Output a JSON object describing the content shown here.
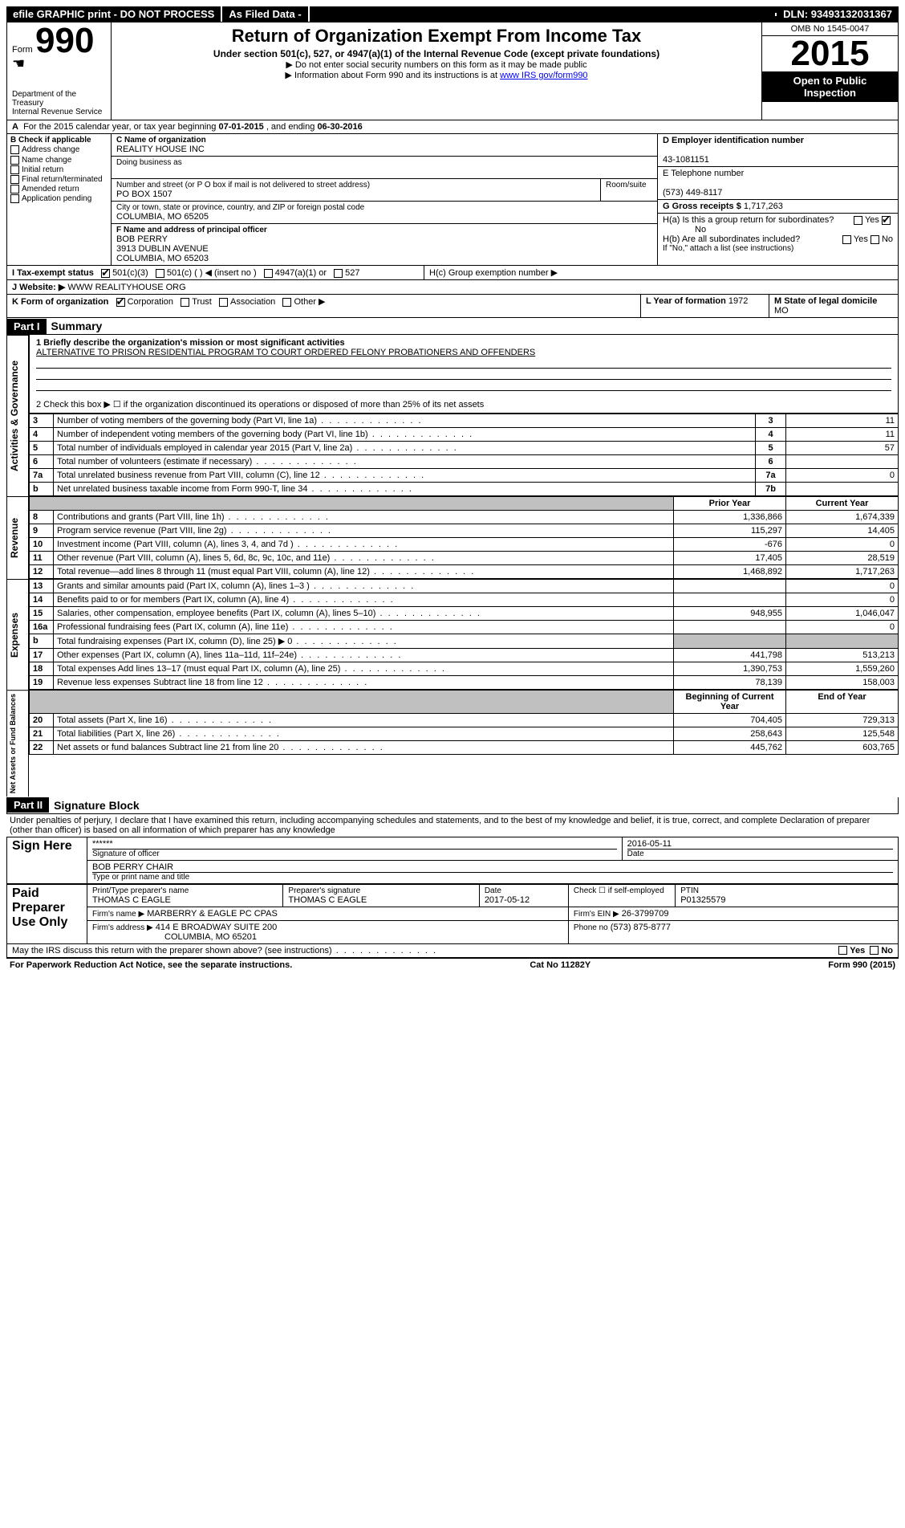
{
  "topbar": {
    "efile": "efile GRAPHIC print - DO NOT PROCESS",
    "asfiled": "As Filed Data -",
    "dln_label": "DLN:",
    "dln": "93493132031367"
  },
  "header": {
    "form_word": "Form",
    "form_num": "990",
    "title": "Return of Organization Exempt From Income Tax",
    "sub": "Under section 501(c), 527, or 4947(a)(1) of the Internal Revenue Code (except private foundations)",
    "note1": "Do not enter social security numbers on this form as it may be made public",
    "note2": "Information about Form 990 and its instructions is at",
    "note2_link": "www IRS gov/form990",
    "dept1": "Department of the Treasury",
    "dept2": "Internal Revenue Service",
    "omb": "OMB No 1545-0047",
    "year": "2015",
    "inspect1": "Open to Public",
    "inspect2": "Inspection"
  },
  "lineA": {
    "label": "For the 2015 calendar year, or tax year beginning",
    "begin": "07-01-2015",
    "mid": ", and ending",
    "end": "06-30-2016"
  },
  "boxB": {
    "label": "B  Check if applicable",
    "items": [
      "Address change",
      "Name change",
      "Initial return",
      "Final return/terminated",
      "Amended return",
      "Application pending"
    ]
  },
  "boxC": {
    "label": "C Name of organization",
    "name": "REALITY HOUSE INC",
    "dba_label": "Doing business as",
    "street_label": "Number and street (or P O  box if mail is not delivered to street address)",
    "room_label": "Room/suite",
    "street": "PO BOX 1507",
    "city_label": "City or town, state or province, country, and ZIP or foreign postal code",
    "city": "COLUMBIA, MO  65205"
  },
  "boxD": {
    "label": "D Employer identification number",
    "value": "43-1081151"
  },
  "boxE": {
    "label": "E Telephone number",
    "value": "(573) 449-8117"
  },
  "boxG": {
    "label": "G Gross receipts $",
    "value": "1,717,263"
  },
  "boxF": {
    "label": "F  Name and address of principal officer",
    "name": "BOB PERRY",
    "street": "3913 DUBLIN AVENUE",
    "city": "COLUMBIA, MO  65203"
  },
  "boxH": {
    "a": "H(a)  Is this a group return for subordinates?",
    "a_ans": "No",
    "b": "H(b)  Are all subordinates included?",
    "b_note": "If \"No,\" attach a list  (see instructions)",
    "c": "H(c)  Group exemption number ▶"
  },
  "lineI": {
    "label": "I   Tax-exempt status",
    "opts": [
      "501(c)(3)",
      "501(c) (  ) ◀ (insert no )",
      "4947(a)(1) or",
      "527"
    ]
  },
  "lineJ": {
    "label": "J   Website: ▶",
    "value": "WWW REALITYHOUSE ORG"
  },
  "lineK": {
    "label": "K Form of organization",
    "opts": [
      "Corporation",
      "Trust",
      "Association",
      "Other ▶"
    ]
  },
  "lineL": {
    "label": "L Year of formation",
    "value": "1972"
  },
  "lineM": {
    "label": "M State of legal domicile",
    "value": "MO"
  },
  "partI": {
    "hdr": "Part I",
    "title": "Summary",
    "q1_label": "1 Briefly describe the organization's mission or most significant activities",
    "q1_value": "ALTERNATIVE TO PRISON RESIDENTIAL PROGRAM TO COURT ORDERED FELONY PROBATIONERS AND OFFENDERS",
    "q2": "2  Check this box ▶ ☐ if the organization discontinued its operations or disposed of more than 25% of its net assets"
  },
  "side_labels": {
    "gov": "Activities & Governance",
    "rev": "Revenue",
    "exp": "Expenses",
    "net": "Net Assets or Fund Balances"
  },
  "gov_rows": [
    {
      "n": "3",
      "label": "Number of voting members of the governing body (Part VI, line 1a)",
      "box": "3",
      "val": "11"
    },
    {
      "n": "4",
      "label": "Number of independent voting members of the governing body (Part VI, line 1b)",
      "box": "4",
      "val": "11"
    },
    {
      "n": "5",
      "label": "Total number of individuals employed in calendar year 2015 (Part V, line 2a)",
      "box": "5",
      "val": "57"
    },
    {
      "n": "6",
      "label": "Total number of volunteers (estimate if necessary)",
      "box": "6",
      "val": ""
    },
    {
      "n": "7a",
      "label": "Total unrelated business revenue from Part VIII, column (C), line 12",
      "box": "7a",
      "val": "0"
    },
    {
      "n": "b",
      "label": "Net unrelated business taxable income from Form 990-T, line 34",
      "box": "7b",
      "val": ""
    }
  ],
  "col_hdrs": {
    "prior": "Prior Year",
    "current": "Current Year"
  },
  "rev_rows": [
    {
      "n": "8",
      "label": "Contributions and grants (Part VIII, line 1h)",
      "p": "1,336,866",
      "c": "1,674,339"
    },
    {
      "n": "9",
      "label": "Program service revenue (Part VIII, line 2g)",
      "p": "115,297",
      "c": "14,405"
    },
    {
      "n": "10",
      "label": "Investment income (Part VIII, column (A), lines 3, 4, and 7d )",
      "p": "-676",
      "c": "0"
    },
    {
      "n": "11",
      "label": "Other revenue (Part VIII, column (A), lines 5, 6d, 8c, 9c, 10c, and 11e)",
      "p": "17,405",
      "c": "28,519"
    },
    {
      "n": "12",
      "label": "Total revenue—add lines 8 through 11 (must equal Part VIII, column (A), line 12)",
      "p": "1,468,892",
      "c": "1,717,263"
    }
  ],
  "exp_rows": [
    {
      "n": "13",
      "label": "Grants and similar amounts paid (Part IX, column (A), lines 1–3 )",
      "p": "",
      "c": "0"
    },
    {
      "n": "14",
      "label": "Benefits paid to or for members (Part IX, column (A), line 4)",
      "p": "",
      "c": "0"
    },
    {
      "n": "15",
      "label": "Salaries, other compensation, employee benefits (Part IX, column (A), lines 5–10)",
      "p": "948,955",
      "c": "1,046,047"
    },
    {
      "n": "16a",
      "label": "Professional fundraising fees (Part IX, column (A), line 11e)",
      "p": "",
      "c": "0"
    },
    {
      "n": "b",
      "label": "Total fundraising expenses (Part IX, column (D), line 25) ▶ 0",
      "p": "GREY",
      "c": "GREY"
    },
    {
      "n": "17",
      "label": "Other expenses (Part IX, column (A), lines 11a–11d, 11f–24e)",
      "p": "441,798",
      "c": "513,213"
    },
    {
      "n": "18",
      "label": "Total expenses  Add lines 13–17 (must equal Part IX, column (A), line 25)",
      "p": "1,390,753",
      "c": "1,559,260"
    },
    {
      "n": "19",
      "label": "Revenue less expenses  Subtract line 18 from line 12",
      "p": "78,139",
      "c": "158,003"
    }
  ],
  "net_hdrs": {
    "begin": "Beginning of Current Year",
    "end": "End of Year"
  },
  "net_rows": [
    {
      "n": "20",
      "label": "Total assets (Part X, line 16)",
      "p": "704,405",
      "c": "729,313"
    },
    {
      "n": "21",
      "label": "Total liabilities (Part X, line 26)",
      "p": "258,643",
      "c": "125,548"
    },
    {
      "n": "22",
      "label": "Net assets or fund balances  Subtract line 21 from line 20",
      "p": "445,762",
      "c": "603,765"
    }
  ],
  "partII": {
    "hdr": "Part II",
    "title": "Signature Block",
    "decl": "Under penalties of perjury, I declare that I have examined this return, including accompanying schedules and statements, and to the best of my knowledge and belief, it is true, correct, and complete  Declaration of preparer (other than officer) is based on all information of which preparer has any knowledge"
  },
  "sign": {
    "here": "Sign Here",
    "stars": "******",
    "sig_label": "Signature of officer",
    "date_label": "Date",
    "date": "2016-05-11",
    "name": "BOB PERRY CHAIR",
    "name_label": "Type or print name and title"
  },
  "preparer": {
    "label": "Paid Preparer Use Only",
    "name_label": "Print/Type preparer's name",
    "name": "THOMAS C EAGLE",
    "sig_label": "Preparer's signature",
    "sig": "THOMAS C EAGLE",
    "date_label": "Date",
    "date": "2017-05-12",
    "check_label": "Check ☐ if self-employed",
    "ptin_label": "PTIN",
    "ptin": "P01325579",
    "firm_name_label": "Firm's name    ▶",
    "firm_name": "MARBERRY & EAGLE PC CPAS",
    "firm_ein_label": "Firm's EIN ▶",
    "firm_ein": "26-3799709",
    "firm_addr_label": "Firm's address ▶",
    "firm_addr1": "414 E BROADWAY SUITE 200",
    "firm_addr2": "COLUMBIA, MO  65201",
    "phone_label": "Phone no",
    "phone": "(573) 875-8777"
  },
  "discuss": {
    "q": "May the IRS discuss this return with the preparer shown above? (see instructions)",
    "yes": "Yes",
    "no": "No"
  },
  "footer": {
    "left": "For Paperwork Reduction Act Notice, see the separate instructions.",
    "mid": "Cat No 11282Y",
    "right": "Form 990 (2015)"
  },
  "yes": "Yes",
  "no": "No"
}
